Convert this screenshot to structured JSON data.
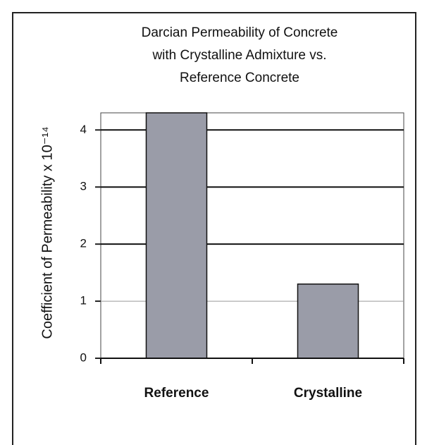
{
  "chart_data": {
    "type": "bar",
    "title": [
      "Darcian Permeability of Concrete",
      "with Crystalline Admixture vs.",
      "Reference Concrete"
    ],
    "y_label": "Coefficient of Permeability x 10⁻¹⁴",
    "categories": [
      "Reference",
      "Crystalline"
    ],
    "values": [
      4.3,
      1.3
    ],
    "color": "#9a9ca8",
    "ylim": [
      0,
      4.3
    ],
    "yticks": [
      0,
      1,
      2,
      3,
      4
    ],
    "grid": true
  }
}
